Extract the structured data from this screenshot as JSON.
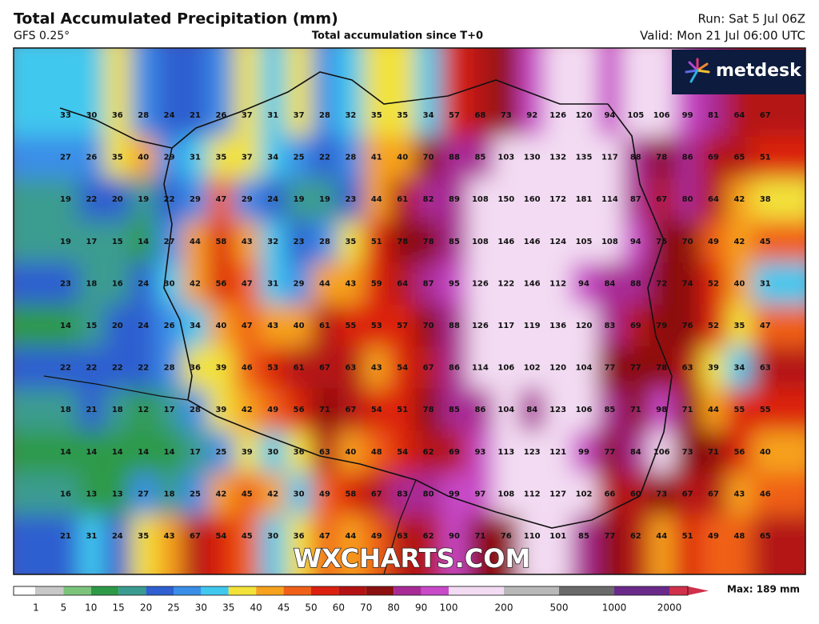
{
  "header": {
    "title": "Total Accumulated Precipitation (mm)",
    "model": "GFS 0.25°",
    "subtitle": "Total accumulation since T+0",
    "run": "Run: Sat 5 Jul 06Z",
    "valid": "Valid: Mon 21 Jul 06:00 UTC"
  },
  "logo": "metdesk",
  "watermark": "WXCHARTS.COM",
  "grid": {
    "rows": [
      [
        33,
        30,
        36,
        28,
        24,
        21,
        26,
        37,
        31,
        37,
        28,
        32,
        35,
        35,
        34,
        57,
        68,
        73,
        92,
        126,
        120,
        94,
        105,
        106,
        99,
        81,
        64,
        67
      ],
      [
        27,
        26,
        35,
        40,
        29,
        31,
        35,
        37,
        34,
        25,
        22,
        28,
        41,
        40,
        70,
        88,
        85,
        103,
        130,
        132,
        135,
        117,
        88,
        78,
        86,
        69,
        65,
        51
      ],
      [
        19,
        22,
        20,
        19,
        22,
        29,
        47,
        29,
        24,
        19,
        19,
        23,
        44,
        61,
        82,
        89,
        108,
        150,
        160,
        172,
        181,
        114,
        87,
        67,
        80,
        64,
        42,
        38
      ],
      [
        19,
        17,
        15,
        14,
        27,
        44,
        58,
        43,
        32,
        23,
        28,
        35,
        51,
        78,
        78,
        85,
        108,
        146,
        146,
        124,
        105,
        108,
        94,
        75,
        70,
        49,
        42,
        45
      ],
      [
        23,
        18,
        16,
        24,
        30,
        42,
        56,
        47,
        31,
        29,
        44,
        43,
        59,
        64,
        87,
        95,
        126,
        122,
        146,
        112,
        94,
        84,
        88,
        72,
        74,
        52,
        40,
        31
      ],
      [
        14,
        15,
        20,
        24,
        26,
        34,
        40,
        47,
        43,
        40,
        61,
        55,
        53,
        57,
        70,
        88,
        126,
        117,
        119,
        136,
        120,
        83,
        69,
        79,
        76,
        52,
        35,
        47
      ],
      [
        22,
        22,
        22,
        22,
        28,
        36,
        39,
        46,
        53,
        61,
        67,
        63,
        43,
        54,
        67,
        86,
        114,
        106,
        102,
        120,
        104,
        77,
        77,
        78,
        63,
        39,
        34,
        63
      ],
      [
        18,
        21,
        18,
        12,
        17,
        28,
        39,
        42,
        49,
        56,
        71,
        67,
        54,
        51,
        78,
        85,
        86,
        104,
        84,
        123,
        106,
        85,
        71,
        98,
        71,
        44,
        55,
        55
      ],
      [
        14,
        14,
        14,
        14,
        14,
        17,
        25,
        39,
        30,
        36,
        63,
        40,
        48,
        54,
        62,
        69,
        93,
        113,
        123,
        121,
        99,
        77,
        84,
        106,
        73,
        71,
        56,
        40
      ],
      [
        16,
        13,
        13,
        27,
        18,
        25,
        42,
        45,
        42,
        30,
        49,
        58,
        67,
        83,
        80,
        99,
        97,
        108,
        112,
        127,
        102,
        66,
        60,
        73,
        67,
        67,
        43,
        46
      ],
      [
        21,
        31,
        24,
        35,
        43,
        67,
        54,
        45,
        30,
        36,
        47,
        44,
        49,
        63,
        62,
        90,
        71,
        76,
        110,
        101,
        85,
        77,
        62,
        44,
        51,
        49,
        48,
        65
      ]
    ]
  },
  "colorbar": {
    "labels": [
      1,
      5,
      10,
      15,
      20,
      25,
      30,
      35,
      40,
      45,
      50,
      60,
      70,
      80,
      90,
      100,
      200,
      500,
      1000,
      2000
    ],
    "max_label": "Max: 189 mm"
  }
}
